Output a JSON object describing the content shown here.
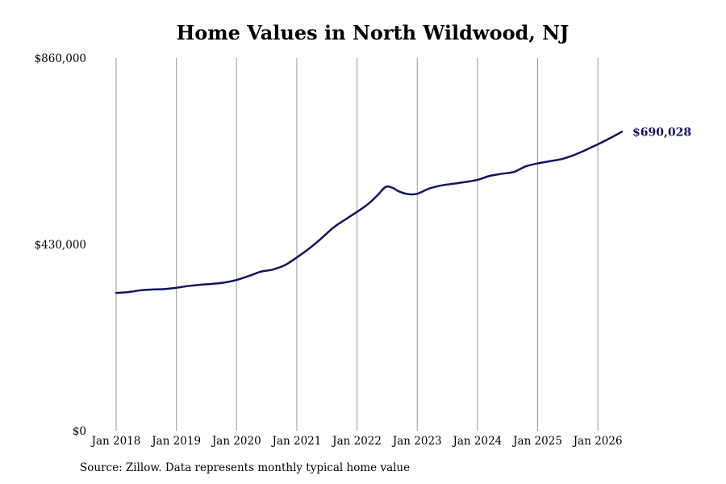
{
  "title": "Home Values in North Wildwood, NJ",
  "source": "Source: Zillow. Data represents monthly typical home value",
  "end_label": "$690,028",
  "colors": {
    "line": "#14145f",
    "grid": "#9a9a9a",
    "text": "#000000"
  },
  "chart_data": {
    "type": "line",
    "title": "Home Values in North Wildwood, NJ",
    "xlabel": "",
    "ylabel": "",
    "ylim": [
      0,
      860000
    ],
    "y_ticks": [
      {
        "value": 0,
        "label": "$0"
      },
      {
        "value": 430000,
        "label": "$430,000"
      },
      {
        "value": 860000,
        "label": "$860,000"
      }
    ],
    "x_ticks": [
      {
        "value": 2018.0,
        "label": "Jan 2018"
      },
      {
        "value": 2019.0,
        "label": "Jan 2019"
      },
      {
        "value": 2020.0,
        "label": "Jan 2020"
      },
      {
        "value": 2021.0,
        "label": "Jan 2021"
      },
      {
        "value": 2022.0,
        "label": "Jan 2022"
      },
      {
        "value": 2023.0,
        "label": "Jan 2023"
      },
      {
        "value": 2024.0,
        "label": "Jan 2024"
      },
      {
        "value": 2025.0,
        "label": "Jan 2025"
      },
      {
        "value": 2026.0,
        "label": "Jan 2026"
      }
    ],
    "x_range": [
      2018.0,
      2026.5
    ],
    "grid": "vertical",
    "series": [
      {
        "name": "",
        "points": [
          [
            2018.0,
            318000
          ],
          [
            2018.2,
            320000
          ],
          [
            2018.4,
            324000
          ],
          [
            2018.6,
            326000
          ],
          [
            2018.8,
            327000
          ],
          [
            2019.0,
            330000
          ],
          [
            2019.2,
            334000
          ],
          [
            2019.4,
            337000
          ],
          [
            2019.6,
            339000
          ],
          [
            2019.8,
            342000
          ],
          [
            2020.0,
            348000
          ],
          [
            2020.2,
            357000
          ],
          [
            2020.4,
            367000
          ],
          [
            2020.6,
            372000
          ],
          [
            2020.8,
            382000
          ],
          [
            2021.0,
            400000
          ],
          [
            2021.2,
            420000
          ],
          [
            2021.4,
            443000
          ],
          [
            2021.6,
            468000
          ],
          [
            2021.8,
            487000
          ],
          [
            2022.0,
            505000
          ],
          [
            2022.2,
            525000
          ],
          [
            2022.35,
            545000
          ],
          [
            2022.48,
            563000
          ],
          [
            2022.6,
            560000
          ],
          [
            2022.7,
            552000
          ],
          [
            2022.85,
            546000
          ],
          [
            2023.0,
            547000
          ],
          [
            2023.2,
            559000
          ],
          [
            2023.4,
            566000
          ],
          [
            2023.6,
            570000
          ],
          [
            2023.8,
            574000
          ],
          [
            2024.0,
            579000
          ],
          [
            2024.2,
            588000
          ],
          [
            2024.4,
            593000
          ],
          [
            2024.6,
            597000
          ],
          [
            2024.8,
            610000
          ],
          [
            2025.0,
            617000
          ],
          [
            2025.2,
            622000
          ],
          [
            2025.4,
            627000
          ],
          [
            2025.6,
            636000
          ],
          [
            2025.8,
            648000
          ],
          [
            2026.0,
            661000
          ],
          [
            2026.2,
            675000
          ],
          [
            2026.4,
            690028
          ]
        ]
      }
    ]
  }
}
